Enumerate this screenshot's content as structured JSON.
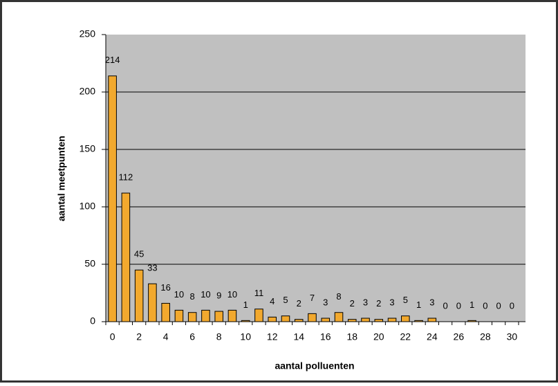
{
  "chart_data": {
    "type": "bar",
    "x_label": "aantal polluenten",
    "y_label": "aantal meetpunten",
    "categories": [
      "0",
      null,
      "2",
      null,
      "4",
      null,
      "6",
      null,
      "8",
      null,
      "10",
      null,
      "12",
      null,
      "14",
      null,
      "16",
      null,
      "18",
      null,
      "20",
      null,
      "22",
      null,
      "24",
      null,
      "26",
      null,
      "28",
      null,
      "30"
    ],
    "values": [
      214,
      112,
      45,
      33,
      16,
      10,
      8,
      10,
      9,
      10,
      1,
      11,
      4,
      5,
      2,
      7,
      3,
      8,
      2,
      3,
      2,
      3,
      5,
      1,
      3,
      0,
      0,
      1,
      0,
      0,
      0
    ],
    "color": "#f2a92e",
    "ylim": [
      0,
      250
    ],
    "yticks": [
      0,
      50,
      100,
      150,
      200,
      250
    ],
    "grid": true
  }
}
